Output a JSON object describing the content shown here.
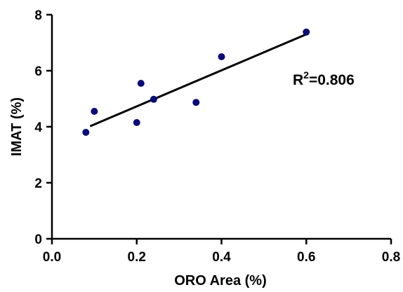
{
  "chart_data": {
    "type": "scatter",
    "xlabel": "ORO Area (%)",
    "ylabel": "IMAT (%)",
    "xlim": [
      0,
      0.8
    ],
    "ylim": [
      0,
      8
    ],
    "x_ticks": [
      "0.0",
      "0.2",
      "0.4",
      "0.6",
      "0.8"
    ],
    "y_ticks": [
      "0",
      "2",
      "4",
      "6",
      "8"
    ],
    "grid": false,
    "points": [
      {
        "x": 0.08,
        "y": 3.8
      },
      {
        "x": 0.1,
        "y": 4.55
      },
      {
        "x": 0.2,
        "y": 4.15
      },
      {
        "x": 0.21,
        "y": 5.55
      },
      {
        "x": 0.24,
        "y": 4.98
      },
      {
        "x": 0.34,
        "y": 4.87
      },
      {
        "x": 0.4,
        "y": 6.5
      },
      {
        "x": 0.6,
        "y": 7.38
      }
    ],
    "fit_line": {
      "x": [
        0.09,
        0.6
      ],
      "y": [
        4.02,
        7.3
      ]
    },
    "annotation": {
      "base": "R",
      "sup": "2",
      "rest": "=0.806"
    },
    "point_color": "#0a0a78",
    "line_color": "#000000"
  }
}
